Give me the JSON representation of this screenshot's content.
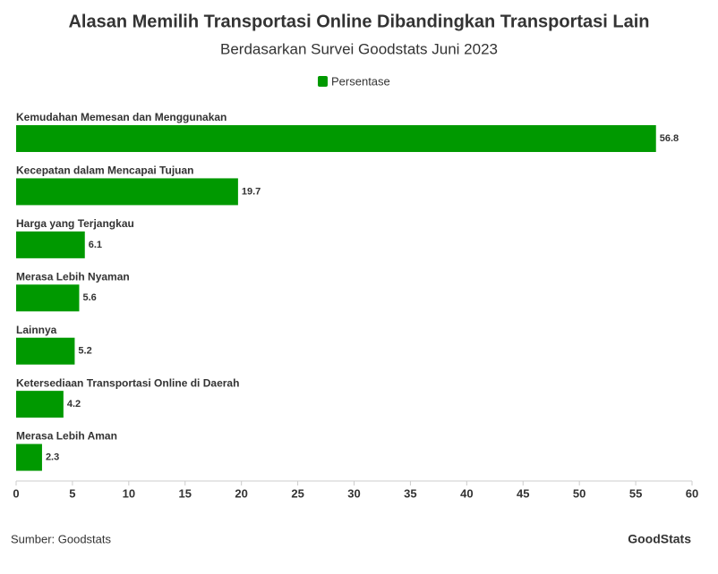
{
  "chart_data": {
    "type": "bar",
    "orientation": "horizontal",
    "title": "Alasan Memilih Transportasi Online Dibandingkan Transportasi Lain",
    "subtitle": "Berdasarkan Survei Goodstats Juni 2023",
    "categories": [
      "Kemudahan Memesan dan Menggunakan",
      "Kecepatan dalam Mencapai Tujuan",
      "Harga yang Terjangkau",
      "Merasa Lebih Nyaman",
      "Lainnya",
      "Ketersediaan Transportasi Online di Daerah",
      "Merasa Lebih Aman"
    ],
    "series": [
      {
        "name": "Persentase",
        "color": "#009900",
        "values": [
          56.8,
          19.7,
          6.1,
          5.6,
          5.2,
          4.2,
          2.3
        ]
      }
    ],
    "xlim": [
      0,
      60
    ],
    "xticks": [
      0,
      5,
      10,
      15,
      20,
      25,
      30,
      35,
      40,
      45,
      50,
      55,
      60
    ],
    "legend": "top",
    "source": "Sumber: Goodstats",
    "logo": "GoodStats"
  }
}
